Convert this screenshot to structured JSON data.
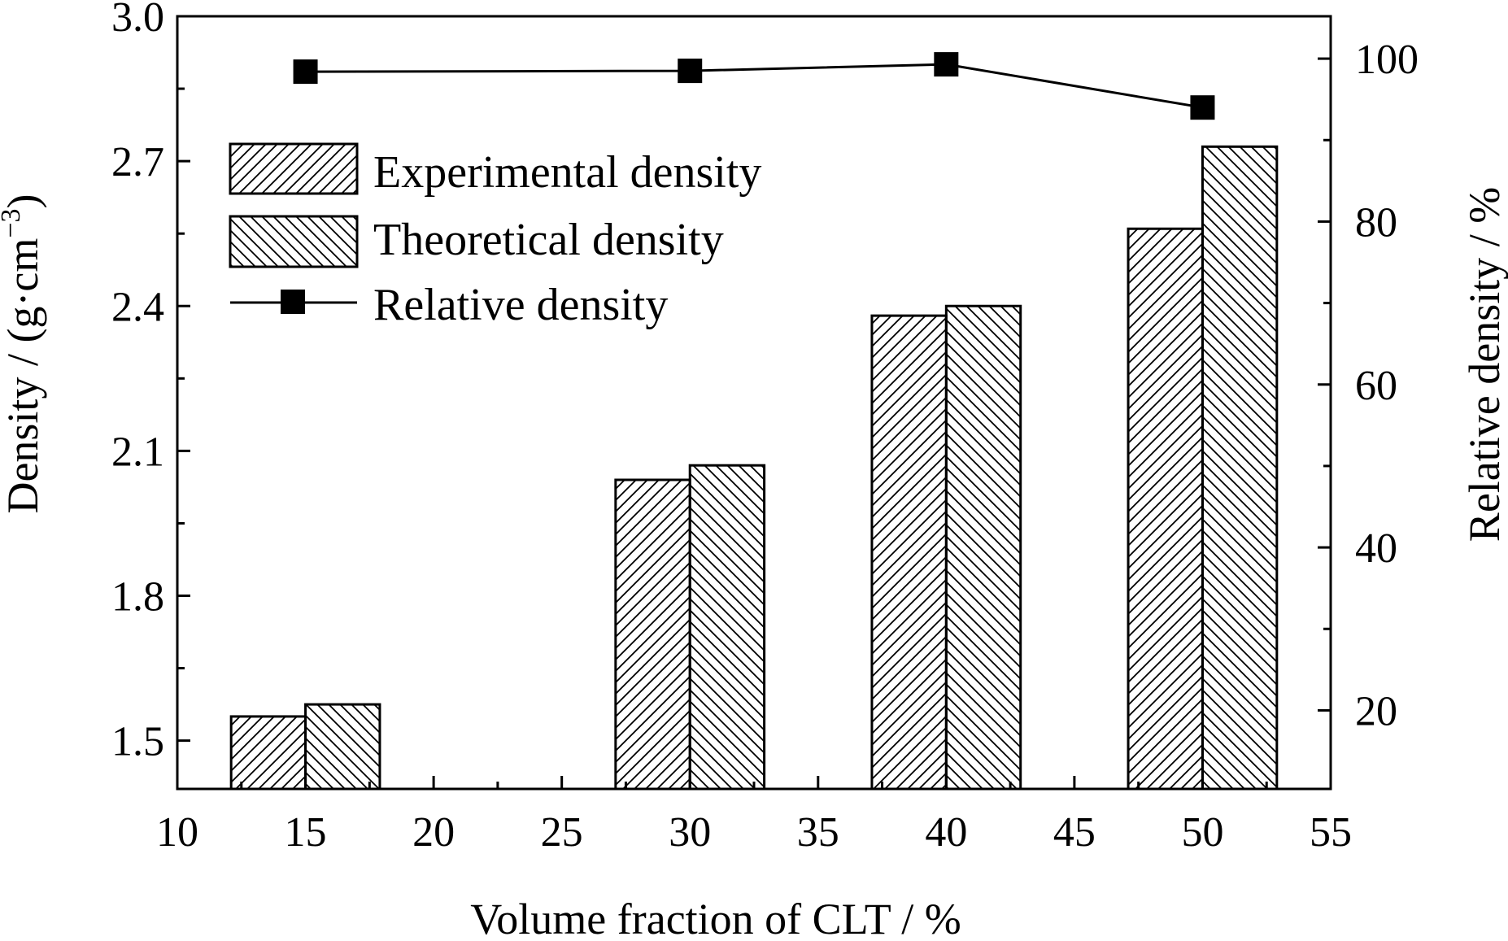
{
  "chart_data": {
    "type": "bar",
    "x_values": [
      15,
      30,
      40,
      50
    ],
    "x_tick_labels": [
      "10",
      "15",
      "20",
      "25",
      "30",
      "35",
      "40",
      "45",
      "50",
      "55"
    ],
    "xlim": [
      10,
      55
    ],
    "xlabel": "Volume fraction of CLT / %",
    "ylabel_main": "Density / (g·cm",
    "ylabel_sup": "−3",
    "ylabel_close": ")",
    "ylim": [
      1.4,
      3.0
    ],
    "y_tick_labels": [
      "1.5",
      "1.8",
      "2.1",
      "2.4",
      "2.7",
      "3.0"
    ],
    "y2label": "Relative density / %",
    "y2lim": [
      10.36,
      105.2
    ],
    "y2_tick_labels": [
      "20",
      "40",
      "60",
      "80",
      "100"
    ],
    "series": [
      {
        "name": "Experimental density",
        "axis": "left",
        "kind": "bar",
        "hatch": "forward",
        "values": [
          1.55,
          2.04,
          2.38,
          2.56
        ]
      },
      {
        "name": "Theoretical density",
        "axis": "left",
        "kind": "bar",
        "hatch": "backward",
        "values": [
          1.575,
          2.07,
          2.4,
          2.73
        ]
      },
      {
        "name": "Relative density",
        "axis": "right",
        "kind": "line",
        "marker": "square",
        "values": [
          98.4,
          98.5,
          99.3,
          94.0
        ]
      }
    ],
    "grid": false,
    "legend_position": "top-left",
    "colors": {
      "ink": "#000000",
      "background": "#ffffff"
    }
  }
}
